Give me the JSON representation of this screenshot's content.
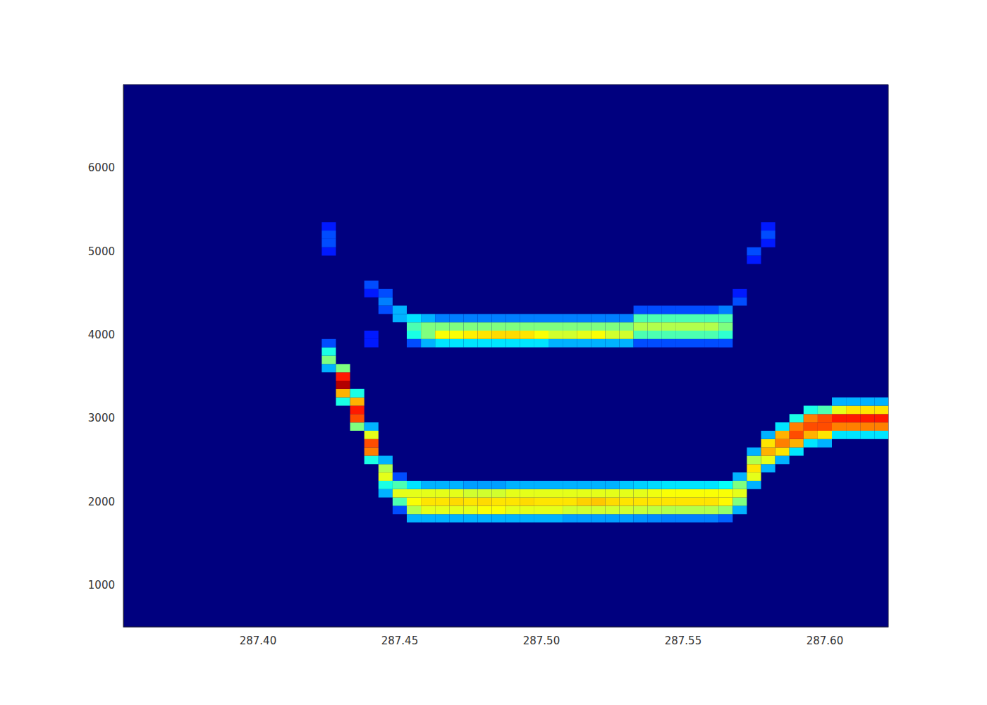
{
  "chart_data": {
    "type": "heatmap",
    "xlim": [
      287.3525,
      287.6224
    ],
    "ylim": [
      500,
      7000
    ],
    "xticks": [
      {
        "value": 287.4,
        "label": "287.40"
      },
      {
        "value": 287.45,
        "label": "287.45"
      },
      {
        "value": 287.5,
        "label": "287.50"
      },
      {
        "value": 287.55,
        "label": "287.55"
      },
      {
        "value": 287.6,
        "label": "287.60"
      }
    ],
    "yticks": [
      1000,
      2000,
      3000,
      4000,
      5000,
      6000
    ],
    "grid": false,
    "cell_size": [
      0.005,
      100
    ],
    "zlim": [
      0,
      1
    ],
    "cells": [
      [
        287.425,
        3600,
        0.3
      ],
      [
        287.425,
        3700,
        0.5
      ],
      [
        287.425,
        3800,
        0.4
      ],
      [
        287.425,
        3900,
        0.2
      ],
      [
        287.425,
        5000,
        0.15
      ],
      [
        287.425,
        5100,
        0.2
      ],
      [
        287.425,
        5200,
        0.2
      ],
      [
        287.425,
        5300,
        0.15
      ],
      [
        287.43,
        3200,
        0.4
      ],
      [
        287.43,
        3300,
        0.7
      ],
      [
        287.43,
        3400,
        0.95
      ],
      [
        287.43,
        3500,
        0.85
      ],
      [
        287.43,
        3600,
        0.5
      ],
      [
        287.435,
        2900,
        0.5
      ],
      [
        287.435,
        3000,
        0.8
      ],
      [
        287.435,
        3100,
        0.85
      ],
      [
        287.435,
        3200,
        0.7
      ],
      [
        287.435,
        3300,
        0.4
      ],
      [
        287.44,
        2500,
        0.4
      ],
      [
        287.44,
        2600,
        0.75
      ],
      [
        287.44,
        2700,
        0.8
      ],
      [
        287.44,
        2800,
        0.6
      ],
      [
        287.44,
        2900,
        0.3
      ],
      [
        287.44,
        3900,
        0.15
      ],
      [
        287.44,
        4000,
        0.15
      ],
      [
        287.44,
        4500,
        0.15
      ],
      [
        287.44,
        4600,
        0.2
      ],
      [
        287.445,
        2100,
        0.3
      ],
      [
        287.445,
        2200,
        0.4
      ],
      [
        287.445,
        2300,
        0.6
      ],
      [
        287.445,
        2400,
        0.55
      ],
      [
        287.445,
        2500,
        0.3
      ],
      [
        287.445,
        4300,
        0.2
      ],
      [
        287.445,
        4400,
        0.25
      ],
      [
        287.445,
        4500,
        0.2
      ],
      [
        287.45,
        1900,
        0.2
      ],
      [
        287.45,
        2000,
        0.45
      ],
      [
        287.45,
        2100,
        0.6
      ],
      [
        287.45,
        2200,
        0.45
      ],
      [
        287.45,
        2300,
        0.2
      ],
      [
        287.45,
        4200,
        0.3
      ],
      [
        287.45,
        4300,
        0.3
      ],
      [
        287.455,
        1800,
        0.3
      ],
      [
        287.455,
        1900,
        0.55
      ],
      [
        287.455,
        2000,
        0.62
      ],
      [
        287.455,
        2100,
        0.6
      ],
      [
        287.455,
        2200,
        0.35
      ],
      [
        287.455,
        3900,
        0.2
      ],
      [
        287.455,
        4000,
        0.4
      ],
      [
        287.455,
        4100,
        0.45
      ],
      [
        287.455,
        4200,
        0.35
      ],
      [
        287.46,
        1800,
        0.3
      ],
      [
        287.46,
        1900,
        0.6
      ],
      [
        287.46,
        2000,
        0.65
      ],
      [
        287.46,
        2100,
        0.6
      ],
      [
        287.46,
        2200,
        0.3
      ],
      [
        287.465,
        1800,
        0.3
      ],
      [
        287.465,
        1900,
        0.6
      ],
      [
        287.465,
        2000,
        0.65
      ],
      [
        287.465,
        2100,
        0.6
      ],
      [
        287.465,
        2200,
        0.3
      ],
      [
        287.47,
        1800,
        0.3
      ],
      [
        287.47,
        1900,
        0.6
      ],
      [
        287.47,
        2000,
        0.66
      ],
      [
        287.47,
        2100,
        0.6
      ],
      [
        287.47,
        2200,
        0.3
      ],
      [
        287.475,
        1800,
        0.3
      ],
      [
        287.475,
        1900,
        0.6
      ],
      [
        287.475,
        2000,
        0.65
      ],
      [
        287.475,
        2100,
        0.58
      ],
      [
        287.475,
        2200,
        0.28
      ],
      [
        287.48,
        1800,
        0.3
      ],
      [
        287.48,
        1900,
        0.62
      ],
      [
        287.48,
        2000,
        0.66
      ],
      [
        287.48,
        2100,
        0.58
      ],
      [
        287.48,
        2200,
        0.28
      ],
      [
        287.485,
        1800,
        0.3
      ],
      [
        287.485,
        1900,
        0.62
      ],
      [
        287.485,
        2000,
        0.65
      ],
      [
        287.485,
        2100,
        0.58
      ],
      [
        287.485,
        2200,
        0.28
      ],
      [
        287.49,
        1800,
        0.3
      ],
      [
        287.49,
        1900,
        0.6
      ],
      [
        287.49,
        2000,
        0.65
      ],
      [
        287.49,
        2100,
        0.6
      ],
      [
        287.49,
        2200,
        0.3
      ],
      [
        287.495,
        1800,
        0.3
      ],
      [
        287.495,
        1900,
        0.6
      ],
      [
        287.495,
        2000,
        0.66
      ],
      [
        287.495,
        2100,
        0.6
      ],
      [
        287.495,
        2200,
        0.3
      ],
      [
        287.5,
        1800,
        0.3
      ],
      [
        287.5,
        1900,
        0.6
      ],
      [
        287.5,
        2000,
        0.65
      ],
      [
        287.5,
        2100,
        0.6
      ],
      [
        287.5,
        2200,
        0.3
      ],
      [
        287.505,
        1800,
        0.3
      ],
      [
        287.505,
        1900,
        0.6
      ],
      [
        287.505,
        2000,
        0.65
      ],
      [
        287.505,
        2100,
        0.6
      ],
      [
        287.505,
        2200,
        0.3
      ],
      [
        287.51,
        1800,
        0.28
      ],
      [
        287.51,
        1900,
        0.58
      ],
      [
        287.51,
        2000,
        0.65
      ],
      [
        287.51,
        2100,
        0.6
      ],
      [
        287.51,
        2200,
        0.3
      ],
      [
        287.515,
        1800,
        0.28
      ],
      [
        287.515,
        1900,
        0.58
      ],
      [
        287.515,
        2000,
        0.67
      ],
      [
        287.515,
        2100,
        0.6
      ],
      [
        287.515,
        2200,
        0.3
      ],
      [
        287.52,
        1800,
        0.28
      ],
      [
        287.52,
        1900,
        0.58
      ],
      [
        287.52,
        2000,
        0.68
      ],
      [
        287.52,
        2100,
        0.6
      ],
      [
        287.52,
        2200,
        0.3
      ],
      [
        287.525,
        1800,
        0.28
      ],
      [
        287.525,
        1900,
        0.58
      ],
      [
        287.525,
        2000,
        0.66
      ],
      [
        287.525,
        2100,
        0.6
      ],
      [
        287.525,
        2200,
        0.3
      ],
      [
        287.53,
        1800,
        0.28
      ],
      [
        287.53,
        1900,
        0.58
      ],
      [
        287.53,
        2000,
        0.65
      ],
      [
        287.53,
        2100,
        0.6
      ],
      [
        287.53,
        2200,
        0.32
      ],
      [
        287.535,
        1800,
        0.27
      ],
      [
        287.535,
        1900,
        0.57
      ],
      [
        287.535,
        2000,
        0.65
      ],
      [
        287.535,
        2100,
        0.6
      ],
      [
        287.535,
        2200,
        0.33
      ],
      [
        287.54,
        1800,
        0.26
      ],
      [
        287.54,
        1900,
        0.56
      ],
      [
        287.54,
        2000,
        0.65
      ],
      [
        287.54,
        2100,
        0.61
      ],
      [
        287.54,
        2200,
        0.34
      ],
      [
        287.545,
        1800,
        0.25
      ],
      [
        287.545,
        1900,
        0.55
      ],
      [
        287.545,
        2000,
        0.65
      ],
      [
        287.545,
        2100,
        0.62
      ],
      [
        287.545,
        2200,
        0.35
      ],
      [
        287.55,
        1800,
        0.25
      ],
      [
        287.55,
        1900,
        0.55
      ],
      [
        287.55,
        2000,
        0.65
      ],
      [
        287.55,
        2100,
        0.62
      ],
      [
        287.55,
        2200,
        0.35
      ],
      [
        287.555,
        1800,
        0.25
      ],
      [
        287.555,
        1900,
        0.55
      ],
      [
        287.555,
        2000,
        0.65
      ],
      [
        287.555,
        2100,
        0.62
      ],
      [
        287.555,
        2200,
        0.35
      ],
      [
        287.56,
        1800,
        0.25
      ],
      [
        287.56,
        1900,
        0.55
      ],
      [
        287.56,
        2000,
        0.65
      ],
      [
        287.56,
        2100,
        0.62
      ],
      [
        287.56,
        2200,
        0.35
      ],
      [
        287.565,
        1800,
        0.22
      ],
      [
        287.565,
        1900,
        0.52
      ],
      [
        287.565,
        2000,
        0.63
      ],
      [
        287.565,
        2100,
        0.62
      ],
      [
        287.565,
        2200,
        0.38
      ],
      [
        287.57,
        1900,
        0.3
      ],
      [
        287.57,
        2000,
        0.5
      ],
      [
        287.57,
        2100,
        0.6
      ],
      [
        287.57,
        2200,
        0.5
      ],
      [
        287.57,
        2300,
        0.3
      ],
      [
        287.575,
        2200,
        0.3
      ],
      [
        287.575,
        2300,
        0.6
      ],
      [
        287.575,
        2400,
        0.65
      ],
      [
        287.575,
        2500,
        0.55
      ],
      [
        287.575,
        2600,
        0.3
      ],
      [
        287.58,
        2400,
        0.3
      ],
      [
        287.58,
        2500,
        0.6
      ],
      [
        287.58,
        2600,
        0.7
      ],
      [
        287.58,
        2700,
        0.65
      ],
      [
        287.58,
        2800,
        0.3
      ],
      [
        287.585,
        2500,
        0.3
      ],
      [
        287.585,
        2600,
        0.65
      ],
      [
        287.585,
        2700,
        0.75
      ],
      [
        287.585,
        2800,
        0.7
      ],
      [
        287.585,
        2900,
        0.35
      ],
      [
        287.59,
        2600,
        0.35
      ],
      [
        287.59,
        2700,
        0.7
      ],
      [
        287.59,
        2800,
        0.8
      ],
      [
        287.59,
        2900,
        0.75
      ],
      [
        287.59,
        3000,
        0.4
      ],
      [
        287.595,
        2700,
        0.35
      ],
      [
        287.595,
        2800,
        0.7
      ],
      [
        287.595,
        2900,
        0.8
      ],
      [
        287.595,
        3000,
        0.75
      ],
      [
        287.595,
        3100,
        0.4
      ],
      [
        287.6,
        2700,
        0.3
      ],
      [
        287.6,
        2800,
        0.65
      ],
      [
        287.6,
        2900,
        0.8
      ],
      [
        287.6,
        3000,
        0.8
      ],
      [
        287.6,
        3100,
        0.45
      ],
      [
        287.605,
        2800,
        0.35
      ],
      [
        287.605,
        2900,
        0.75
      ],
      [
        287.605,
        3000,
        0.85
      ],
      [
        287.605,
        3100,
        0.6
      ],
      [
        287.605,
        3200,
        0.3
      ],
      [
        287.61,
        2800,
        0.35
      ],
      [
        287.61,
        2900,
        0.75
      ],
      [
        287.61,
        3000,
        0.85
      ],
      [
        287.61,
        3100,
        0.65
      ],
      [
        287.61,
        3200,
        0.3
      ],
      [
        287.615,
        2800,
        0.35
      ],
      [
        287.615,
        2900,
        0.75
      ],
      [
        287.615,
        3000,
        0.85
      ],
      [
        287.615,
        3100,
        0.65
      ],
      [
        287.615,
        3200,
        0.3
      ],
      [
        287.62,
        2800,
        0.35
      ],
      [
        287.62,
        2900,
        0.75
      ],
      [
        287.62,
        3000,
        0.85
      ],
      [
        287.62,
        3100,
        0.65
      ],
      [
        287.62,
        3200,
        0.3
      ],
      [
        287.46,
        3900,
        0.3
      ],
      [
        287.46,
        4000,
        0.5
      ],
      [
        287.46,
        4100,
        0.5
      ],
      [
        287.46,
        4200,
        0.3
      ],
      [
        287.465,
        3900,
        0.35
      ],
      [
        287.465,
        4000,
        0.62
      ],
      [
        287.465,
        4100,
        0.5
      ],
      [
        287.465,
        4200,
        0.25
      ],
      [
        287.47,
        3900,
        0.35
      ],
      [
        287.47,
        4000,
        0.62
      ],
      [
        287.47,
        4100,
        0.5
      ],
      [
        287.47,
        4200,
        0.25
      ],
      [
        287.475,
        3900,
        0.35
      ],
      [
        287.475,
        4000,
        0.64
      ],
      [
        287.475,
        4100,
        0.5
      ],
      [
        287.475,
        4200,
        0.25
      ],
      [
        287.48,
        3900,
        0.35
      ],
      [
        287.48,
        4000,
        0.65
      ],
      [
        287.48,
        4100,
        0.5
      ],
      [
        287.48,
        4200,
        0.25
      ],
      [
        287.485,
        3900,
        0.35
      ],
      [
        287.485,
        4000,
        0.66
      ],
      [
        287.485,
        4100,
        0.5
      ],
      [
        287.485,
        4200,
        0.25
      ],
      [
        287.49,
        3900,
        0.35
      ],
      [
        287.49,
        4000,
        0.66
      ],
      [
        287.49,
        4100,
        0.5
      ],
      [
        287.49,
        4200,
        0.25
      ],
      [
        287.495,
        3900,
        0.35
      ],
      [
        287.495,
        4000,
        0.65
      ],
      [
        287.495,
        4100,
        0.5
      ],
      [
        287.495,
        4200,
        0.25
      ],
      [
        287.5,
        3900,
        0.35
      ],
      [
        287.5,
        4000,
        0.62
      ],
      [
        287.5,
        4100,
        0.5
      ],
      [
        287.5,
        4200,
        0.25
      ],
      [
        287.505,
        3900,
        0.3
      ],
      [
        287.505,
        4000,
        0.58
      ],
      [
        287.505,
        4100,
        0.5
      ],
      [
        287.505,
        4200,
        0.25
      ],
      [
        287.51,
        3900,
        0.3
      ],
      [
        287.51,
        4000,
        0.58
      ],
      [
        287.51,
        4100,
        0.5
      ],
      [
        287.51,
        4200,
        0.25
      ],
      [
        287.515,
        3900,
        0.3
      ],
      [
        287.515,
        4000,
        0.6
      ],
      [
        287.515,
        4100,
        0.5
      ],
      [
        287.515,
        4200,
        0.25
      ],
      [
        287.52,
        3900,
        0.3
      ],
      [
        287.52,
        4000,
        0.62
      ],
      [
        287.52,
        4100,
        0.5
      ],
      [
        287.52,
        4200,
        0.25
      ],
      [
        287.525,
        3900,
        0.3
      ],
      [
        287.525,
        4000,
        0.58
      ],
      [
        287.525,
        4100,
        0.5
      ],
      [
        287.525,
        4200,
        0.25
      ],
      [
        287.53,
        3900,
        0.3
      ],
      [
        287.53,
        4000,
        0.58
      ],
      [
        287.53,
        4100,
        0.5
      ],
      [
        287.53,
        4200,
        0.25
      ],
      [
        287.535,
        3900,
        0.2
      ],
      [
        287.535,
        4000,
        0.45
      ],
      [
        287.535,
        4100,
        0.55
      ],
      [
        287.535,
        4200,
        0.45
      ],
      [
        287.535,
        4300,
        0.2
      ],
      [
        287.54,
        3900,
        0.2
      ],
      [
        287.54,
        4000,
        0.45
      ],
      [
        287.54,
        4100,
        0.55
      ],
      [
        287.54,
        4200,
        0.45
      ],
      [
        287.54,
        4300,
        0.2
      ],
      [
        287.545,
        3900,
        0.2
      ],
      [
        287.545,
        4000,
        0.45
      ],
      [
        287.545,
        4100,
        0.55
      ],
      [
        287.545,
        4200,
        0.45
      ],
      [
        287.545,
        4300,
        0.2
      ],
      [
        287.55,
        3900,
        0.2
      ],
      [
        287.55,
        4000,
        0.45
      ],
      [
        287.55,
        4100,
        0.55
      ],
      [
        287.55,
        4200,
        0.45
      ],
      [
        287.55,
        4300,
        0.2
      ],
      [
        287.555,
        3900,
        0.2
      ],
      [
        287.555,
        4000,
        0.45
      ],
      [
        287.555,
        4100,
        0.55
      ],
      [
        287.555,
        4200,
        0.45
      ],
      [
        287.555,
        4300,
        0.2
      ],
      [
        287.56,
        3900,
        0.2
      ],
      [
        287.56,
        4000,
        0.45
      ],
      [
        287.56,
        4100,
        0.55
      ],
      [
        287.56,
        4200,
        0.45
      ],
      [
        287.56,
        4300,
        0.2
      ],
      [
        287.565,
        3900,
        0.2
      ],
      [
        287.565,
        4000,
        0.42
      ],
      [
        287.565,
        4100,
        0.5
      ],
      [
        287.565,
        4200,
        0.45
      ],
      [
        287.565,
        4300,
        0.25
      ],
      [
        287.57,
        4400,
        0.2
      ],
      [
        287.57,
        4500,
        0.15
      ],
      [
        287.575,
        4900,
        0.15
      ],
      [
        287.575,
        5000,
        0.2
      ],
      [
        287.58,
        5100,
        0.15
      ],
      [
        287.58,
        5200,
        0.2
      ],
      [
        287.58,
        5300,
        0.15
      ]
    ]
  }
}
